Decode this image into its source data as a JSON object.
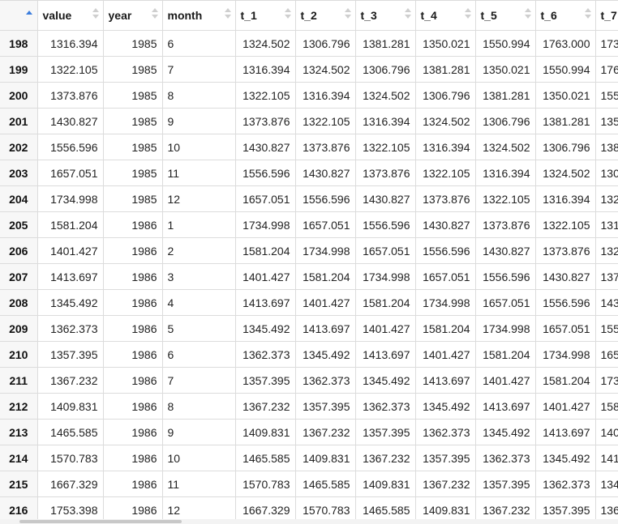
{
  "columns": [
    "value",
    "year",
    "month",
    "t_1",
    "t_2",
    "t_3",
    "t_4",
    "t_5",
    "t_6",
    "t_7"
  ],
  "sort": {
    "column": "row",
    "direction": "asc",
    "accent_color": "#3b7ddd"
  },
  "rows": [
    {
      "rn": "198",
      "value": "1316.394",
      "year": "1985",
      "month": "6",
      "t_1": "1324.502",
      "t_2": "1306.796",
      "t_3": "1381.281",
      "t_4": "1350.021",
      "t_5": "1550.994",
      "t_6": "1763.000",
      "t_7": "173"
    },
    {
      "rn": "199",
      "value": "1322.105",
      "year": "1985",
      "month": "7",
      "t_1": "1316.394",
      "t_2": "1324.502",
      "t_3": "1306.796",
      "t_4": "1381.281",
      "t_5": "1350.021",
      "t_6": "1550.994",
      "t_7": "176"
    },
    {
      "rn": "200",
      "value": "1373.876",
      "year": "1985",
      "month": "8",
      "t_1": "1322.105",
      "t_2": "1316.394",
      "t_3": "1324.502",
      "t_4": "1306.796",
      "t_5": "1381.281",
      "t_6": "1350.021",
      "t_7": "155"
    },
    {
      "rn": "201",
      "value": "1430.827",
      "year": "1985",
      "month": "9",
      "t_1": "1373.876",
      "t_2": "1322.105",
      "t_3": "1316.394",
      "t_4": "1324.502",
      "t_5": "1306.796",
      "t_6": "1381.281",
      "t_7": "135"
    },
    {
      "rn": "202",
      "value": "1556.596",
      "year": "1985",
      "month": "10",
      "t_1": "1430.827",
      "t_2": "1373.876",
      "t_3": "1322.105",
      "t_4": "1316.394",
      "t_5": "1324.502",
      "t_6": "1306.796",
      "t_7": "138"
    },
    {
      "rn": "203",
      "value": "1657.051",
      "year": "1985",
      "month": "11",
      "t_1": "1556.596",
      "t_2": "1430.827",
      "t_3": "1373.876",
      "t_4": "1322.105",
      "t_5": "1316.394",
      "t_6": "1324.502",
      "t_7": "130"
    },
    {
      "rn": "204",
      "value": "1734.998",
      "year": "1985",
      "month": "12",
      "t_1": "1657.051",
      "t_2": "1556.596",
      "t_3": "1430.827",
      "t_4": "1373.876",
      "t_5": "1322.105",
      "t_6": "1316.394",
      "t_7": "132"
    },
    {
      "rn": "205",
      "value": "1581.204",
      "year": "1986",
      "month": "1",
      "t_1": "1734.998",
      "t_2": "1657.051",
      "t_3": "1556.596",
      "t_4": "1430.827",
      "t_5": "1373.876",
      "t_6": "1322.105",
      "t_7": "131"
    },
    {
      "rn": "206",
      "value": "1401.427",
      "year": "1986",
      "month": "2",
      "t_1": "1581.204",
      "t_2": "1734.998",
      "t_3": "1657.051",
      "t_4": "1556.596",
      "t_5": "1430.827",
      "t_6": "1373.876",
      "t_7": "132"
    },
    {
      "rn": "207",
      "value": "1413.697",
      "year": "1986",
      "month": "3",
      "t_1": "1401.427",
      "t_2": "1581.204",
      "t_3": "1734.998",
      "t_4": "1657.051",
      "t_5": "1556.596",
      "t_6": "1430.827",
      "t_7": "137"
    },
    {
      "rn": "208",
      "value": "1345.492",
      "year": "1986",
      "month": "4",
      "t_1": "1413.697",
      "t_2": "1401.427",
      "t_3": "1581.204",
      "t_4": "1734.998",
      "t_5": "1657.051",
      "t_6": "1556.596",
      "t_7": "143"
    },
    {
      "rn": "209",
      "value": "1362.373",
      "year": "1986",
      "month": "5",
      "t_1": "1345.492",
      "t_2": "1413.697",
      "t_3": "1401.427",
      "t_4": "1581.204",
      "t_5": "1734.998",
      "t_6": "1657.051",
      "t_7": "155"
    },
    {
      "rn": "210",
      "value": "1357.395",
      "year": "1986",
      "month": "6",
      "t_1": "1362.373",
      "t_2": "1345.492",
      "t_3": "1413.697",
      "t_4": "1401.427",
      "t_5": "1581.204",
      "t_6": "1734.998",
      "t_7": "165"
    },
    {
      "rn": "211",
      "value": "1367.232",
      "year": "1986",
      "month": "7",
      "t_1": "1357.395",
      "t_2": "1362.373",
      "t_3": "1345.492",
      "t_4": "1413.697",
      "t_5": "1401.427",
      "t_6": "1581.204",
      "t_7": "173"
    },
    {
      "rn": "212",
      "value": "1409.831",
      "year": "1986",
      "month": "8",
      "t_1": "1367.232",
      "t_2": "1357.395",
      "t_3": "1362.373",
      "t_4": "1345.492",
      "t_5": "1413.697",
      "t_6": "1401.427",
      "t_7": "158"
    },
    {
      "rn": "213",
      "value": "1465.585",
      "year": "1986",
      "month": "9",
      "t_1": "1409.831",
      "t_2": "1367.232",
      "t_3": "1357.395",
      "t_4": "1362.373",
      "t_5": "1345.492",
      "t_6": "1413.697",
      "t_7": "140"
    },
    {
      "rn": "214",
      "value": "1570.783",
      "year": "1986",
      "month": "10",
      "t_1": "1465.585",
      "t_2": "1409.831",
      "t_3": "1367.232",
      "t_4": "1357.395",
      "t_5": "1362.373",
      "t_6": "1345.492",
      "t_7": "141"
    },
    {
      "rn": "215",
      "value": "1667.329",
      "year": "1986",
      "month": "11",
      "t_1": "1570.783",
      "t_2": "1465.585",
      "t_3": "1409.831",
      "t_4": "1367.232",
      "t_5": "1357.395",
      "t_6": "1362.373",
      "t_7": "134"
    },
    {
      "rn": "216",
      "value": "1753.398",
      "year": "1986",
      "month": "12",
      "t_1": "1667.329",
      "t_2": "1570.783",
      "t_3": "1465.585",
      "t_4": "1409.831",
      "t_5": "1367.232",
      "t_6": "1357.395",
      "t_7": "136"
    }
  ]
}
